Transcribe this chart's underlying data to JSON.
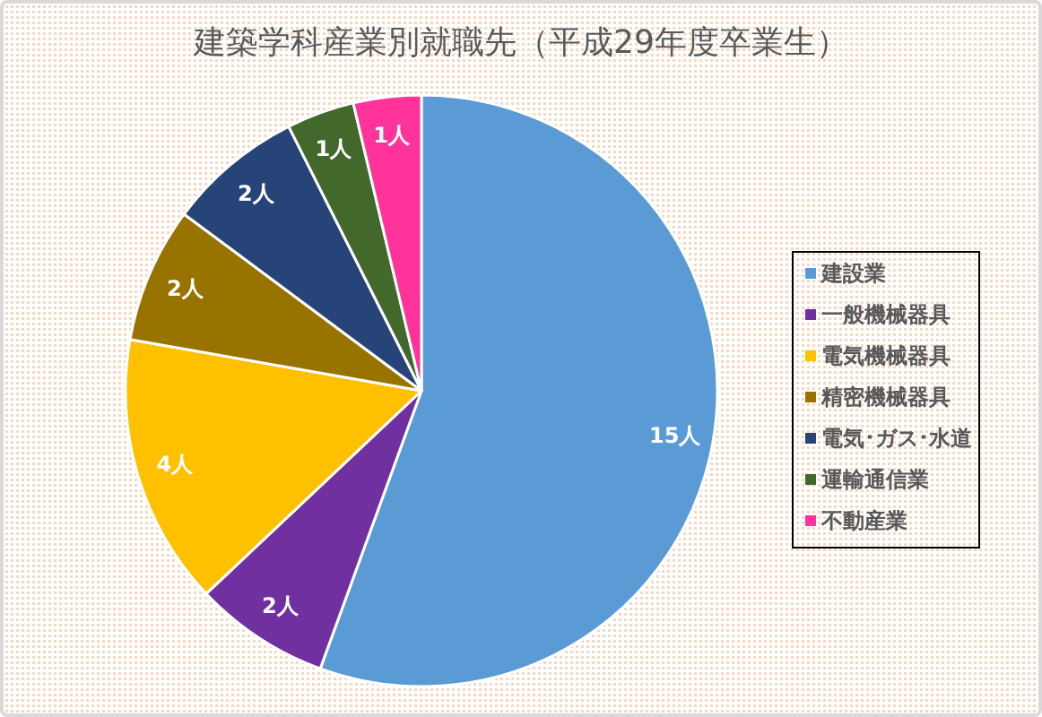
{
  "chart_data": {
    "type": "pie",
    "title": "建築学科産業別就職先（平成29年度卒業生）",
    "categories": [
      "建設業",
      "一般機械器具",
      "電気機械器具",
      "精密機械器具",
      "電気･ガス･水道",
      "運輸通信業",
      "不動産業"
    ],
    "values": [
      15,
      2,
      4,
      2,
      2,
      1,
      1
    ],
    "colors": [
      "#5b9bd5",
      "#7030a0",
      "#ffc000",
      "#997300",
      "#264478",
      "#43682b",
      "#ff3399"
    ],
    "value_labels": [
      "15人",
      "2人",
      "4人",
      "2人",
      "2人",
      "1人",
      "1人"
    ],
    "legend": "right"
  }
}
